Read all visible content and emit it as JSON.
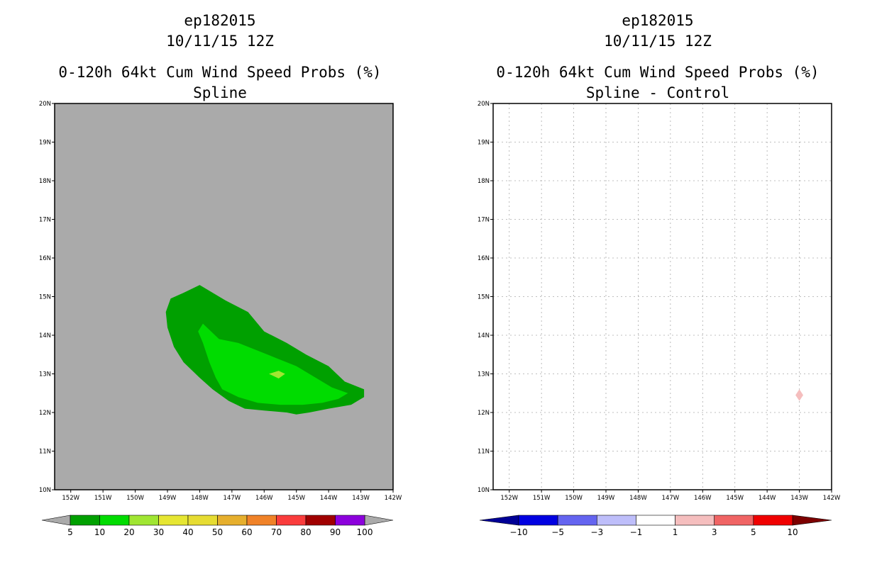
{
  "chart_data": [
    {
      "type": "contour",
      "storm_id": "ep182015",
      "date_line": "10/11/15 12Z",
      "title": "0-120h 64kt Cum Wind Speed Probs (%)",
      "subtitle": "Spline",
      "xlim": [
        -152.5,
        -142
      ],
      "ylim": [
        10,
        20
      ],
      "x_ticks": [
        "152W",
        "151W",
        "150W",
        "149W",
        "148W",
        "147W",
        "146W",
        "145W",
        "144W",
        "143W",
        "142W"
      ],
      "y_ticks": [
        "10N",
        "11N",
        "12N",
        "13N",
        "14N",
        "15N",
        "16N",
        "17N",
        "18N",
        "19N",
        "20N"
      ],
      "grid": false,
      "background": "#aaaaaa",
      "contours": [
        {
          "level": "5-10",
          "color": "#00a000",
          "lonlat": [
            [
              -148,
              15.3
            ],
            [
              -147.2,
              14.9
            ],
            [
              -146.5,
              14.6
            ],
            [
              -146,
              14.1
            ],
            [
              -145.3,
              13.8
            ],
            [
              -144.7,
              13.5
            ],
            [
              -144,
              13.2
            ],
            [
              -143.5,
              12.8
            ],
            [
              -142.9,
              12.6
            ],
            [
              -142.9,
              12.4
            ],
            [
              -143.3,
              12.2
            ],
            [
              -144,
              12.1
            ],
            [
              -144.6,
              12
            ],
            [
              -145,
              11.95
            ],
            [
              -145.3,
              12
            ],
            [
              -146,
              12.05
            ],
            [
              -146.6,
              12.1
            ],
            [
              -147.1,
              12.3
            ],
            [
              -147.6,
              12.6
            ],
            [
              -148,
              12.9
            ],
            [
              -148.5,
              13.3
            ],
            [
              -148.8,
              13.7
            ],
            [
              -149,
              14.2
            ],
            [
              -149.05,
              14.6
            ],
            [
              -148.9,
              14.95
            ],
            [
              -148.5,
              15.1
            ]
          ]
        },
        {
          "level": "10-20",
          "color": "#00dc00",
          "lonlat": [
            [
              -147.9,
              14.3
            ],
            [
              -147.4,
              13.9
            ],
            [
              -146.8,
              13.8
            ],
            [
              -146.2,
              13.6
            ],
            [
              -145.6,
              13.4
            ],
            [
              -145,
              13.2
            ],
            [
              -144.4,
              12.9
            ],
            [
              -143.9,
              12.65
            ],
            [
              -143.4,
              12.5
            ],
            [
              -143.7,
              12.35
            ],
            [
              -144.2,
              12.25
            ],
            [
              -144.8,
              12.2
            ],
            [
              -145.5,
              12.2
            ],
            [
              -146.2,
              12.25
            ],
            [
              -146.8,
              12.4
            ],
            [
              -147.3,
              12.6
            ],
            [
              -147.5,
              12.9
            ],
            [
              -147.7,
              13.3
            ],
            [
              -147.9,
              13.8
            ],
            [
              -148.05,
              14.1
            ]
          ]
        },
        {
          "level": "20-30",
          "color": "#a0e632",
          "lonlat": [
            [
              -145.85,
              13
            ],
            [
              -145.55,
              13.08
            ],
            [
              -145.35,
              13
            ],
            [
              -145.55,
              12.88
            ]
          ]
        }
      ],
      "colorbar": {
        "levels": [
          "5",
          "10",
          "20",
          "30",
          "40",
          "50",
          "60",
          "70",
          "80",
          "90",
          "100"
        ],
        "colors": [
          "#00a000",
          "#00dc00",
          "#a0e632",
          "#e6e632",
          "#e6dc32",
          "#e6af2d",
          "#f08228",
          "#fa3c3c",
          "#a00000",
          "#8c00dc"
        ],
        "under_color": "#aaaaaa",
        "over_color": "#aaaaaa"
      }
    },
    {
      "type": "contour",
      "storm_id": "ep182015",
      "date_line": "10/11/15 12Z",
      "title": "0-120h 64kt Cum Wind Speed Probs (%)",
      "subtitle": "Spline - Control",
      "xlim": [
        -152.5,
        -142
      ],
      "ylim": [
        10,
        20
      ],
      "x_ticks": [
        "152W",
        "151W",
        "150W",
        "149W",
        "148W",
        "147W",
        "146W",
        "145W",
        "144W",
        "143W",
        "142W"
      ],
      "y_ticks": [
        "10N",
        "11N",
        "12N",
        "13N",
        "14N",
        "15N",
        "16N",
        "17N",
        "18N",
        "19N",
        "20N"
      ],
      "grid": true,
      "background": "#ffffff",
      "contours": [
        {
          "level": "1-3",
          "color": "#f5bebe",
          "lonlat": [
            [
              -143,
              12.6
            ],
            [
              -142.88,
              12.45
            ],
            [
              -143,
              12.3
            ],
            [
              -143.12,
              12.45
            ]
          ]
        }
      ],
      "colorbar": {
        "levels": [
          "-10",
          "-5",
          "-3",
          "-1",
          "1",
          "3",
          "5",
          "10"
        ],
        "colors": [
          "#0000e1",
          "#6464f0",
          "#bebefa",
          "#ffffff",
          "#f5bebe",
          "#f06464",
          "#f00000"
        ],
        "under_color": "#000096",
        "over_color": "#7d0000"
      }
    }
  ]
}
